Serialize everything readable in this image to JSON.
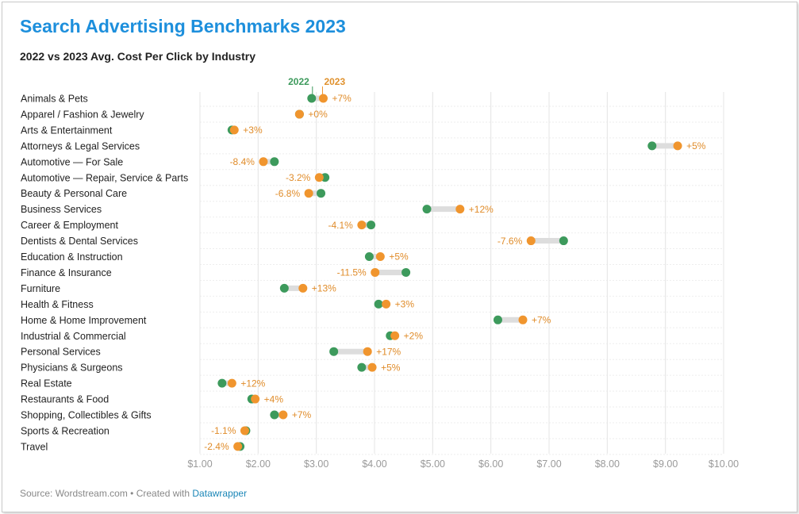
{
  "header": {
    "title": "Search Advertising Benchmarks 2023",
    "subtitle": "2022 vs 2023 Avg. Cost Per Click by Industry"
  },
  "footer": {
    "source": "Source: Wordstream.com • Created with ",
    "link": "Datawrapper"
  },
  "colors": {
    "y2022": "#3d9a5c",
    "y2023": "#f0952e",
    "connector": "#dddddd",
    "grid": "#e4e4e4"
  },
  "chart_data": {
    "type": "scatter",
    "subtype": "dot-range",
    "title": "Search Advertising Benchmarks 2023",
    "subtitle": "2022 vs 2023 Avg. Cost Per Click by Industry",
    "xlabel": "",
    "ylabel": "",
    "xlim": [
      1,
      10
    ],
    "ticks": [
      1,
      2,
      3,
      4,
      5,
      6,
      7,
      8,
      9,
      10
    ],
    "tick_labels": [
      "$1.00",
      "$2.00",
      "$3.00",
      "$4.00",
      "$5.00",
      "$6.00",
      "$7.00",
      "$8.00",
      "$9.00",
      "$10.00"
    ],
    "legend": [
      "2022",
      "2023"
    ],
    "grid": true,
    "rows": [
      {
        "label": "Animals & Pets",
        "v2022": 2.92,
        "v2023": 3.12,
        "change": "+7%"
      },
      {
        "label": "Apparel / Fashion & Jewelry",
        "v2022": 2.71,
        "v2023": 2.71,
        "change": "+0%"
      },
      {
        "label": "Arts & Entertainment",
        "v2022": 1.55,
        "v2023": 1.59,
        "change": "+3%"
      },
      {
        "label": "Attorneys & Legal Services",
        "v2022": 8.77,
        "v2023": 9.21,
        "change": "+5%"
      },
      {
        "label": "Automotive — For Sale",
        "v2022": 2.28,
        "v2023": 2.09,
        "change": "-8.4%"
      },
      {
        "label": "Automotive — Repair, Service & Parts",
        "v2022": 3.15,
        "v2023": 3.05,
        "change": "-3.2%"
      },
      {
        "label": "Beauty & Personal Care",
        "v2022": 3.08,
        "v2023": 2.87,
        "change": "-6.8%"
      },
      {
        "label": "Business Services",
        "v2022": 4.9,
        "v2023": 5.47,
        "change": "+12%"
      },
      {
        "label": "Career & Employment",
        "v2022": 3.94,
        "v2023": 3.78,
        "change": "-4.1%"
      },
      {
        "label": "Dentists & Dental Services",
        "v2022": 7.25,
        "v2023": 6.69,
        "change": "-7.6%"
      },
      {
        "label": "Education & Instruction",
        "v2022": 3.91,
        "v2023": 4.1,
        "change": "+5%"
      },
      {
        "label": "Finance & Insurance",
        "v2022": 4.54,
        "v2023": 4.01,
        "change": "-11.5%"
      },
      {
        "label": "Furniture",
        "v2022": 2.45,
        "v2023": 2.77,
        "change": "+13%"
      },
      {
        "label": "Health & Fitness",
        "v2022": 4.07,
        "v2023": 4.2,
        "change": "+3%"
      },
      {
        "label": "Home & Home Improvement",
        "v2022": 6.12,
        "v2023": 6.55,
        "change": "+7%"
      },
      {
        "label": "Industrial & Commercial",
        "v2022": 4.27,
        "v2023": 4.35,
        "change": "+2%"
      },
      {
        "label": "Personal Services",
        "v2022": 3.3,
        "v2023": 3.88,
        "change": "+17%"
      },
      {
        "label": "Physicians & Surgeons",
        "v2022": 3.78,
        "v2023": 3.96,
        "change": "+5%"
      },
      {
        "label": "Real Estate",
        "v2022": 1.38,
        "v2023": 1.55,
        "change": "+12%"
      },
      {
        "label": "Restaurants & Food",
        "v2022": 1.89,
        "v2023": 1.95,
        "change": "+4%"
      },
      {
        "label": "Shopping, Collectibles & Gifts",
        "v2022": 2.28,
        "v2023": 2.43,
        "change": "+7%"
      },
      {
        "label": "Sports & Recreation",
        "v2022": 1.79,
        "v2023": 1.77,
        "change": "-1.1%"
      },
      {
        "label": "Travel",
        "v2022": 1.69,
        "v2023": 1.65,
        "change": "-2.4%"
      }
    ]
  }
}
